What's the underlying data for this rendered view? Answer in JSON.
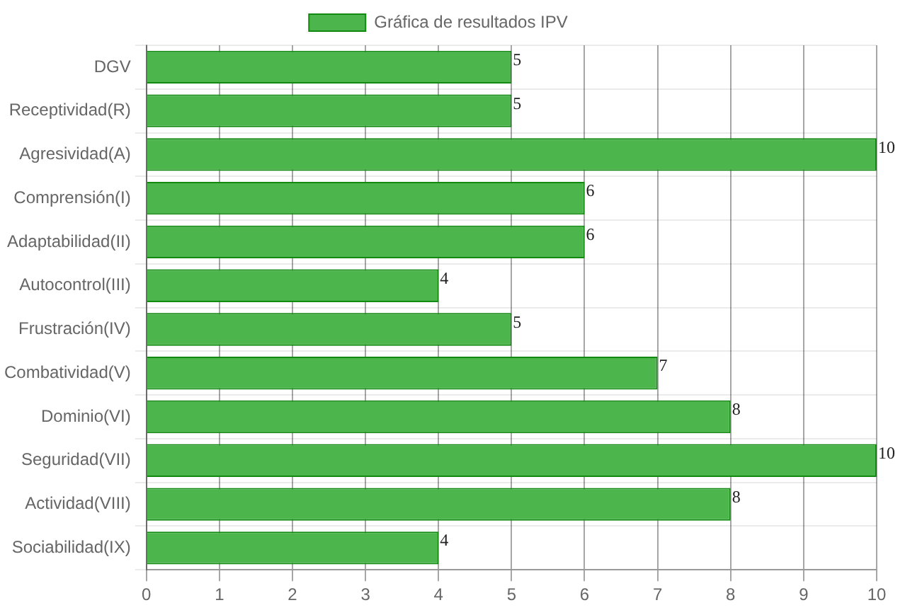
{
  "chart_data": {
    "type": "bar",
    "orientation": "horizontal",
    "categories": [
      "DGV",
      "Receptividad(R)",
      "Agresividad(A)",
      "Comprensión(I)",
      "Adaptabilidad(II)",
      "Autocontrol(III)",
      "Frustración(IV)",
      "Combatividad(V)",
      "Dominio(VI)",
      "Seguridad(VII)",
      "Actividad(VIII)",
      "Sociabilidad(IX)"
    ],
    "series": [
      {
        "name": "Gráfica de resultados IPV",
        "color": "#4cb54c",
        "values": [
          5,
          5,
          10,
          6,
          6,
          4,
          5,
          7,
          8,
          10,
          8,
          4
        ]
      }
    ],
    "xlim": [
      0,
      10
    ],
    "xticks": [
      0,
      1,
      2,
      3,
      4,
      5,
      6,
      7,
      8,
      9,
      10
    ],
    "grid": true,
    "legend": "top",
    "data_labels": true
  }
}
